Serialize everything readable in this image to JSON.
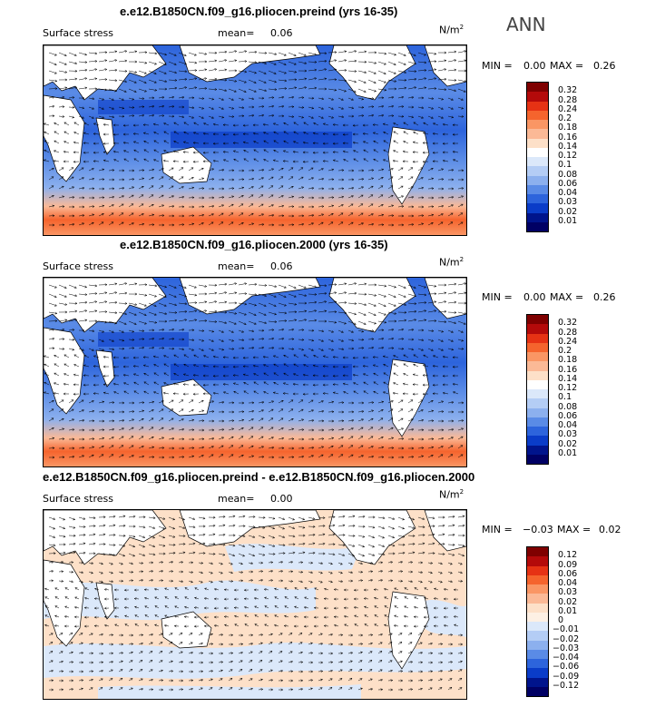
{
  "season": "ANN",
  "panels": [
    {
      "title": "e.e12.B1850CN.f09_g16.pliocen.preind (yrs 16-35)",
      "variable": "Surface stress",
      "mean_label": "mean=",
      "mean_value": "0.06",
      "units": "N/m",
      "units_exp": "2",
      "min_label": "MIN =",
      "min_value": "0.00",
      "max_label": "MAX =",
      "max_value": "0.26",
      "colorbar": {
        "levels": [
          "0.32",
          "0.28",
          "0.24",
          "0.2",
          "0.18",
          "0.16",
          "0.14",
          "0.12",
          "0.1",
          "0.08",
          "0.06",
          "0.04",
          "0.03",
          "0.02",
          "0.01"
        ],
        "colors": [
          "#7f0000",
          "#b40a0a",
          "#e63214",
          "#f5642d",
          "#fa9664",
          "#fbb996",
          "#fde0c8",
          "#ffffff",
          "#dbe8fa",
          "#b4cdf5",
          "#8cb0ee",
          "#5a8be6",
          "#2d64dc",
          "#0a3cc8",
          "#00148c",
          "#000064"
        ]
      }
    },
    {
      "title": "e.e12.B1850CN.f09_g16.pliocen.2000 (yrs 16-35)",
      "variable": "Surface stress",
      "mean_label": "mean=",
      "mean_value": "0.06",
      "units": "N/m",
      "units_exp": "2",
      "min_label": "MIN =",
      "min_value": "0.00",
      "max_label": "MAX =",
      "max_value": "0.26",
      "colorbar": {
        "levels": [
          "0.32",
          "0.28",
          "0.24",
          "0.2",
          "0.18",
          "0.16",
          "0.14",
          "0.12",
          "0.1",
          "0.08",
          "0.06",
          "0.04",
          "0.03",
          "0.02",
          "0.01"
        ],
        "colors": [
          "#7f0000",
          "#b40a0a",
          "#e63214",
          "#f5642d",
          "#fa9664",
          "#fbb996",
          "#fde0c8",
          "#ffffff",
          "#dbe8fa",
          "#b4cdf5",
          "#8cb0ee",
          "#5a8be6",
          "#2d64dc",
          "#0a3cc8",
          "#00148c",
          "#000064"
        ]
      }
    },
    {
      "title": "e.e12.B1850CN.f09_g16.pliocen.preind - e.e12.B1850CN.f09_g16.pliocen.2000",
      "variable": "Surface stress",
      "mean_label": "mean=",
      "mean_value": "0.00",
      "units": "N/m",
      "units_exp": "2",
      "min_label": "MIN =",
      "min_value": "−0.03",
      "max_label": "MAX =",
      "max_value": "0.02",
      "colorbar": {
        "levels": [
          "0.12",
          "0.09",
          "0.06",
          "0.04",
          "0.03",
          "0.02",
          "0.01",
          "0",
          "−0.01",
          "−0.02",
          "−0.03",
          "−0.04",
          "−0.06",
          "−0.09",
          "−0.12"
        ],
        "colors": [
          "#7f0000",
          "#b40a0a",
          "#e63214",
          "#f5642d",
          "#fa9664",
          "#fbb996",
          "#fde0c8",
          "#fdf0e4",
          "#dbe8fa",
          "#b4cdf5",
          "#8cb0ee",
          "#5a8be6",
          "#2d64dc",
          "#0a3cc8",
          "#00148c",
          "#000064"
        ]
      }
    }
  ]
}
